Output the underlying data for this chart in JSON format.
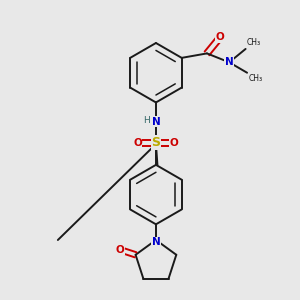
{
  "bg_color": "#e8e8e8",
  "bond_color": "#1a1a1a",
  "N_color": "#0000cc",
  "O_color": "#cc0000",
  "S_color": "#bbaa00",
  "H_color": "#336666",
  "C_color": "#1a1a1a",
  "figure_size": [
    3.0,
    3.0
  ],
  "dpi": 100,
  "xlim": [
    0,
    10
  ],
  "ylim": [
    0,
    10
  ]
}
